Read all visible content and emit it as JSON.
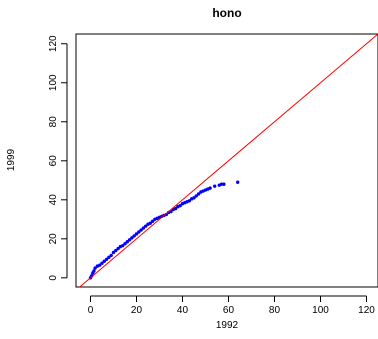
{
  "chart_data": {
    "type": "scatter",
    "title": "hono",
    "xlabel": "1992",
    "ylabel": "1999",
    "xlim": [
      -6.3,
      125
    ],
    "ylim": [
      -4.7,
      125
    ],
    "xticks": [
      0,
      20,
      40,
      60,
      80,
      100,
      120
    ],
    "yticks": [
      0,
      20,
      40,
      60,
      80,
      100,
      120
    ],
    "xtick_labels": [
      "0",
      "20",
      "40",
      "60",
      "80",
      "100",
      "120"
    ],
    "ytick_labels": [
      "0",
      "20",
      "40",
      "60",
      "80",
      "100",
      "120"
    ],
    "grid": false,
    "reference_line": {
      "type": "identity",
      "color": "#ff0000"
    },
    "point_color": "#0000ff",
    "points": [
      [
        0,
        0
      ],
      [
        0.5,
        1
      ],
      [
        1,
        2.5
      ],
      [
        1.5,
        3.5
      ],
      [
        2,
        5
      ],
      [
        3,
        6
      ],
      [
        4,
        6.5
      ],
      [
        5,
        7.5
      ],
      [
        6,
        8.5
      ],
      [
        7,
        9.5
      ],
      [
        8,
        10.5
      ],
      [
        9,
        11.5
      ],
      [
        10,
        13
      ],
      [
        11,
        14
      ],
      [
        12,
        15
      ],
      [
        13,
        16
      ],
      [
        14,
        16.5
      ],
      [
        15,
        17.5
      ],
      [
        16,
        18.5
      ],
      [
        17,
        19.5
      ],
      [
        18,
        20.5
      ],
      [
        19,
        21.5
      ],
      [
        20,
        22.5
      ],
      [
        21,
        23.5
      ],
      [
        22,
        24.5
      ],
      [
        23,
        25.5
      ],
      [
        24,
        26.5
      ],
      [
        25,
        27.5
      ],
      [
        26,
        28
      ],
      [
        27,
        29
      ],
      [
        28,
        30
      ],
      [
        29,
        30.5
      ],
      [
        30,
        31
      ],
      [
        31,
        31.5
      ],
      [
        32,
        32
      ],
      [
        33,
        32.5
      ],
      [
        34,
        33.5
      ],
      [
        35,
        34
      ],
      [
        36,
        35
      ],
      [
        37,
        35.5
      ],
      [
        38,
        36.5
      ],
      [
        39,
        37
      ],
      [
        40,
        38
      ],
      [
        41,
        38.5
      ],
      [
        42,
        39
      ],
      [
        43,
        39.5
      ],
      [
        44,
        40.5
      ],
      [
        45,
        41
      ],
      [
        46,
        42
      ],
      [
        47,
        43
      ],
      [
        48,
        44
      ],
      [
        49,
        44.5
      ],
      [
        50,
        45
      ],
      [
        51,
        45.5
      ],
      [
        52,
        46
      ],
      [
        54,
        47
      ],
      [
        56,
        47.5
      ],
      [
        57,
        48
      ],
      [
        58,
        48
      ],
      [
        64,
        49
      ]
    ]
  }
}
